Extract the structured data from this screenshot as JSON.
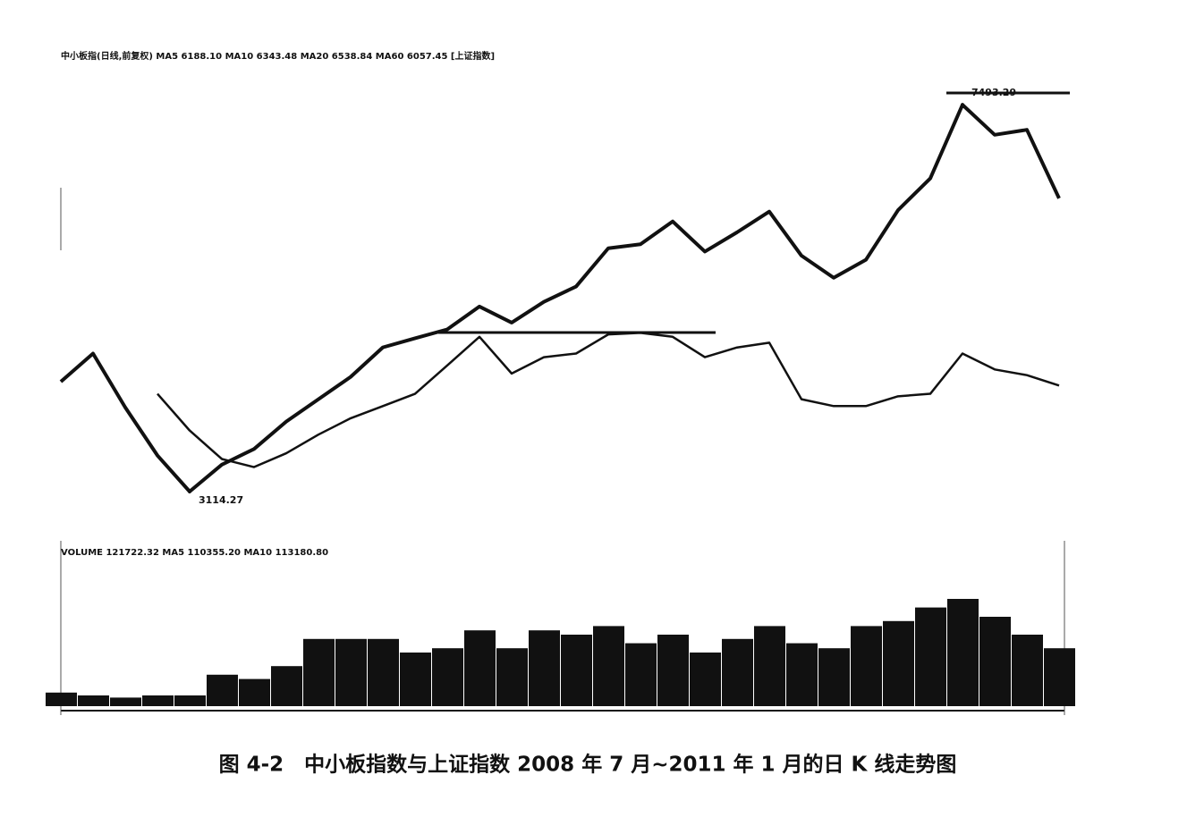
{
  "chart_data": [
    {
      "type": "line",
      "title": "中小板指(日线,前复权) MA5 6188.10 MA10 6343.48 MA20 6538.84 MA60 6057.45 [上证指数]",
      "categories": [
        null,
        null,
        null,
        null,
        null,
        null,
        null,
        null,
        null,
        null,
        null,
        null,
        null,
        null,
        null,
        null,
        null,
        null,
        null,
        null,
        null,
        null,
        null,
        null,
        null,
        null,
        null,
        null,
        null,
        null,
        null,
        null
      ],
      "log_scale": true,
      "ylim": [
        2900,
        8000
      ],
      "series": [
        {
          "name": "中小板指",
          "color": "#111111",
          "values": [
            3996,
            4260,
            3770,
            3380,
            3114.27,
            3310,
            3430,
            3650,
            3840,
            4040,
            4320,
            4410,
            4500,
            4740,
            4570,
            4790,
            4960,
            5410,
            5460,
            5750,
            5370,
            5610,
            5880,
            5320,
            5060,
            5270,
            5900,
            6340,
            7493.29,
            7000,
            7080,
            6060
          ]
        },
        {
          "name": "上证指数",
          "color": "#111111",
          "values": [
            null,
            null,
            null,
            3888,
            3577,
            3353,
            3292,
            3397,
            3544,
            3678,
            3781,
            3888,
            4147,
            4425,
            4071,
            4225,
            4260,
            4449,
            4465,
            4425,
            4225,
            4319,
            4366,
            3840,
            3781,
            3781,
            3866,
            3888,
            4260,
            4109,
            4056,
            3961
          ]
        }
      ],
      "annotations": [
        {
          "text": "7493.29",
          "value": 7493.29,
          "index": 28
        },
        {
          "text": "3114.27",
          "value": 3114.27,
          "index": 4
        }
      ]
    },
    {
      "type": "bar",
      "title": "VOLUME 121722.32 MA5 110355.20 MA10 113180.80",
      "categories": [
        null,
        null,
        null,
        null,
        null,
        null,
        null,
        null,
        null,
        null,
        null,
        null,
        null,
        null,
        null,
        null,
        null,
        null,
        null,
        null,
        null,
        null,
        null,
        null,
        null,
        null,
        null,
        null,
        null,
        null,
        null,
        null
      ],
      "ylim": [
        0,
        200
      ],
      "color": "#111111",
      "values": [
        19,
        15,
        12,
        15,
        15,
        44,
        38,
        56,
        94,
        94,
        94,
        75,
        81,
        106,
        81,
        106,
        100,
        112,
        88,
        100,
        75,
        94,
        112,
        88,
        81,
        112,
        119,
        138,
        150,
        125,
        100,
        81
      ]
    }
  ],
  "caption": "图 4-2　中小板指数与上证指数 2008 年 7 月~2011 年 1 月的日 K 线走势图"
}
